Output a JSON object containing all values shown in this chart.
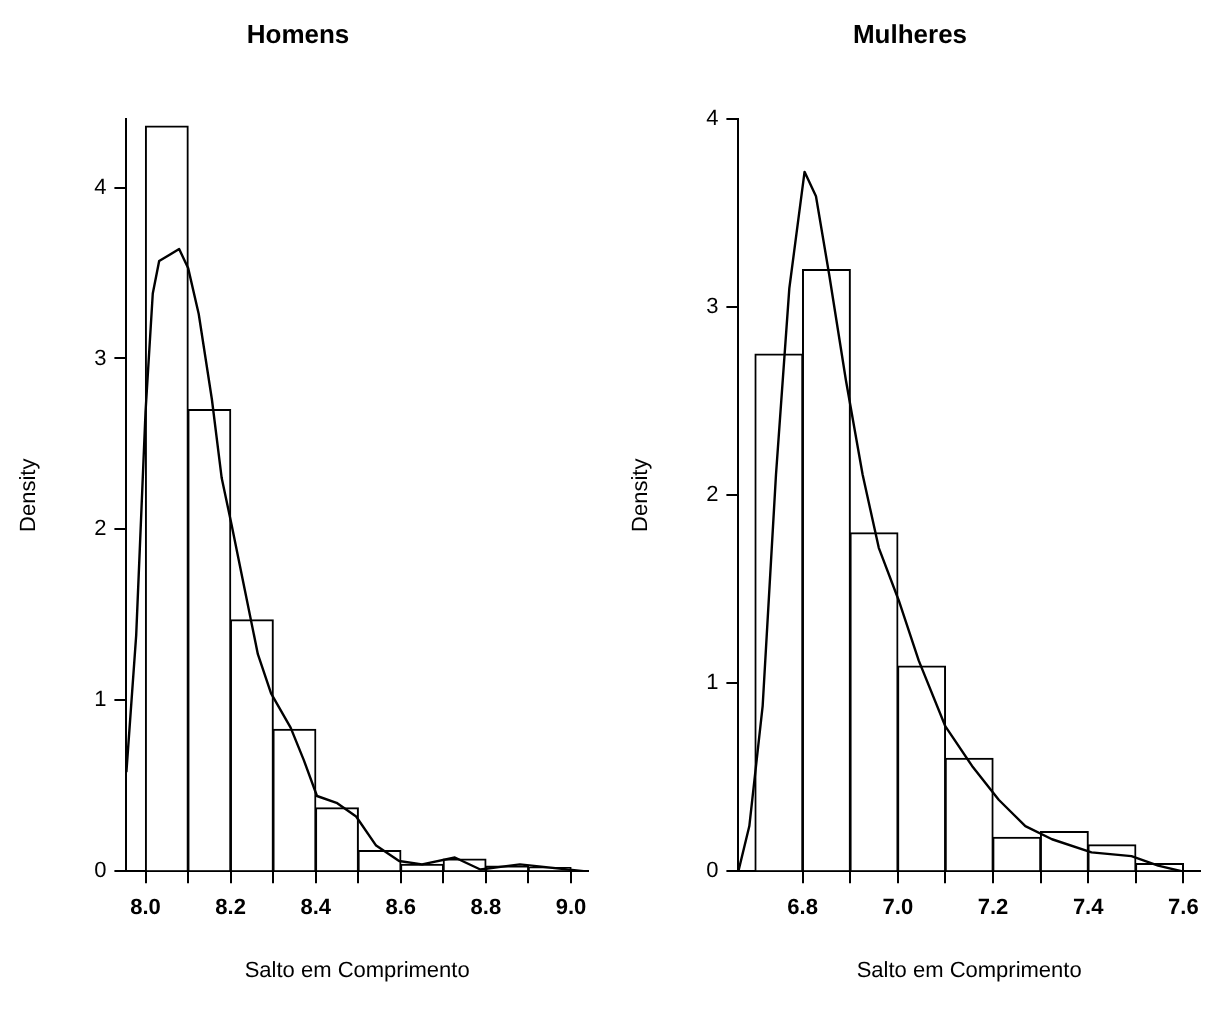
{
  "chart_data": [
    {
      "type": "histogram",
      "title": "Homens",
      "xlabel": "Salto em Comprimento",
      "ylabel": "Density",
      "bins": [
        8.0,
        8.1,
        8.2,
        8.3,
        8.4,
        8.5,
        8.6,
        8.7,
        8.8,
        8.9,
        9.0
      ],
      "values": [
        4.36,
        2.7,
        1.47,
        0.83,
        0.37,
        0.12,
        0.04,
        0.07,
        0.03,
        0.02
      ],
      "color": "#ffffff",
      "series": [
        {
          "type": "line",
          "color": "#000000",
          "x": [
            7.955,
            7.978,
            8.0,
            8.017,
            8.032,
            8.079,
            8.1,
            8.125,
            8.156,
            8.179,
            8.202,
            8.233,
            8.264,
            8.295,
            8.341,
            8.372,
            8.403,
            8.449,
            8.495,
            8.542,
            8.596,
            8.65,
            8.727,
            8.787,
            8.88,
            9.03
          ],
          "values": [
            0.58,
            1.38,
            2.69,
            3.38,
            3.57,
            3.64,
            3.53,
            3.26,
            2.76,
            2.3,
            2.03,
            1.65,
            1.27,
            1.04,
            0.84,
            0.65,
            0.44,
            0.4,
            0.32,
            0.15,
            0.06,
            0.04,
            0.08,
            0.01,
            0.04,
            0.0
          ]
        }
      ],
      "xlim": [
        7.955,
        9.04
      ],
      "ylim": [
        0,
        4.4
      ],
      "xticks": [
        {
          "value": 8.0,
          "label": "8.0"
        },
        {
          "value": 8.1,
          "label": null
        },
        {
          "value": 8.2,
          "label": "8.2"
        },
        {
          "value": 8.3,
          "label": null
        },
        {
          "value": 8.4,
          "label": "8.4"
        },
        {
          "value": 8.5,
          "label": null
        },
        {
          "value": 8.6,
          "label": "8.6"
        },
        {
          "value": 8.7,
          "label": null
        },
        {
          "value": 8.8,
          "label": "8.8"
        },
        {
          "value": 8.9,
          "label": null
        },
        {
          "value": 9.0,
          "label": "9.0"
        }
      ],
      "yticks": [
        0,
        1,
        2,
        3,
        4
      ]
    },
    {
      "type": "histogram",
      "title": "Mulheres",
      "xlabel": "Salto em Comprimento",
      "ylabel": "Density",
      "bins": [
        6.7,
        6.8,
        6.9,
        7.0,
        7.1,
        7.2,
        7.3,
        7.4,
        7.5,
        7.6
      ],
      "values": [
        2.75,
        3.2,
        1.8,
        1.09,
        0.6,
        0.18,
        0.21,
        0.14,
        0.04
      ],
      "color": "#ffffff",
      "series": [
        {
          "type": "line",
          "color": "#000000",
          "x": [
            6.665,
            6.688,
            6.716,
            6.744,
            6.772,
            6.804,
            6.828,
            6.856,
            6.891,
            6.926,
            6.96,
            7.002,
            7.044,
            7.1,
            7.156,
            7.212,
            7.268,
            7.324,
            7.407,
            7.491,
            7.547,
            7.596,
            7.63
          ],
          "values": [
            0.0,
            0.24,
            0.88,
            2.11,
            3.1,
            3.72,
            3.59,
            3.17,
            2.61,
            2.11,
            1.72,
            1.44,
            1.12,
            0.77,
            0.56,
            0.38,
            0.24,
            0.17,
            0.1,
            0.08,
            0.03,
            0.0,
            0.0
          ]
        }
      ],
      "xlim": [
        6.665,
        7.635
      ],
      "ylim": [
        0,
        4
      ],
      "xticks": [
        {
          "value": 6.8,
          "label": "6.8"
        },
        {
          "value": 6.9,
          "label": null
        },
        {
          "value": 7.0,
          "label": "7.0"
        },
        {
          "value": 7.1,
          "label": null
        },
        {
          "value": 7.2,
          "label": "7.2"
        },
        {
          "value": 7.3,
          "label": null
        },
        {
          "value": 7.4,
          "label": "7.4"
        },
        {
          "value": 7.5,
          "label": null
        },
        {
          "value": 7.6,
          "label": "7.6"
        }
      ],
      "yticks": [
        0,
        1,
        2,
        3,
        4
      ]
    }
  ]
}
